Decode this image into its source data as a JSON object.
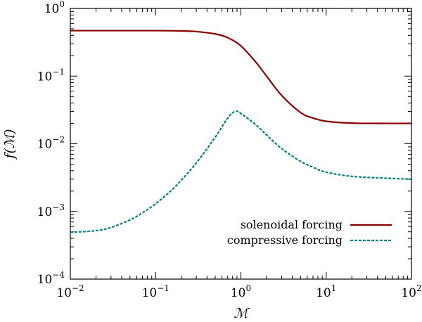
{
  "chart_data": {
    "type": "line",
    "title": "",
    "xlabel": "ℳ",
    "ylabel": "f(ℳ)",
    "xscale": "log",
    "yscale": "log",
    "xlim": [
      0.01,
      100
    ],
    "ylim": [
      0.0001,
      1
    ],
    "x_ticks": [
      {
        "value": 0.01,
        "base": "10",
        "exp": "−2"
      },
      {
        "value": 0.1,
        "base": "10",
        "exp": "−1"
      },
      {
        "value": 1,
        "base": "10",
        "exp": "0"
      },
      {
        "value": 10,
        "base": "10",
        "exp": "1"
      },
      {
        "value": 100,
        "base": "10",
        "exp": "2"
      }
    ],
    "y_ticks": [
      {
        "value": 0.0001,
        "base": "10",
        "exp": "−4"
      },
      {
        "value": 0.001,
        "base": "10",
        "exp": "−3"
      },
      {
        "value": 0.01,
        "base": "10",
        "exp": "−2"
      },
      {
        "value": 0.1,
        "base": "10",
        "exp": "−1"
      },
      {
        "value": 1,
        "base": "10",
        "exp": "0"
      }
    ],
    "legend_position": "bottom-right",
    "grid": false,
    "series": [
      {
        "name": "solenoidal forcing",
        "color": "#8b0000",
        "dash": "solid",
        "x": [
          0.01,
          0.03,
          0.1,
          0.2,
          0.3,
          0.5,
          0.7,
          1,
          1.5,
          2,
          3,
          5,
          7,
          10,
          20,
          50,
          100
        ],
        "y": [
          0.47,
          0.47,
          0.47,
          0.465,
          0.455,
          0.42,
          0.37,
          0.28,
          0.16,
          0.1,
          0.052,
          0.029,
          0.024,
          0.0215,
          0.0202,
          0.02,
          0.02
        ]
      },
      {
        "name": "compressive forcing",
        "color": "#008080",
        "dash": "dashed",
        "x": [
          0.01,
          0.02,
          0.03,
          0.05,
          0.07,
          0.1,
          0.15,
          0.2,
          0.3,
          0.5,
          0.7,
          0.85,
          1,
          1.5,
          2,
          3,
          5,
          7,
          10,
          20,
          50,
          100
        ],
        "y": [
          0.00049,
          0.00052,
          0.00058,
          0.00075,
          0.00095,
          0.0013,
          0.002,
          0.0029,
          0.0052,
          0.0125,
          0.024,
          0.03,
          0.028,
          0.019,
          0.0135,
          0.0085,
          0.0055,
          0.0045,
          0.0038,
          0.0033,
          0.0031,
          0.003
        ]
      }
    ]
  }
}
